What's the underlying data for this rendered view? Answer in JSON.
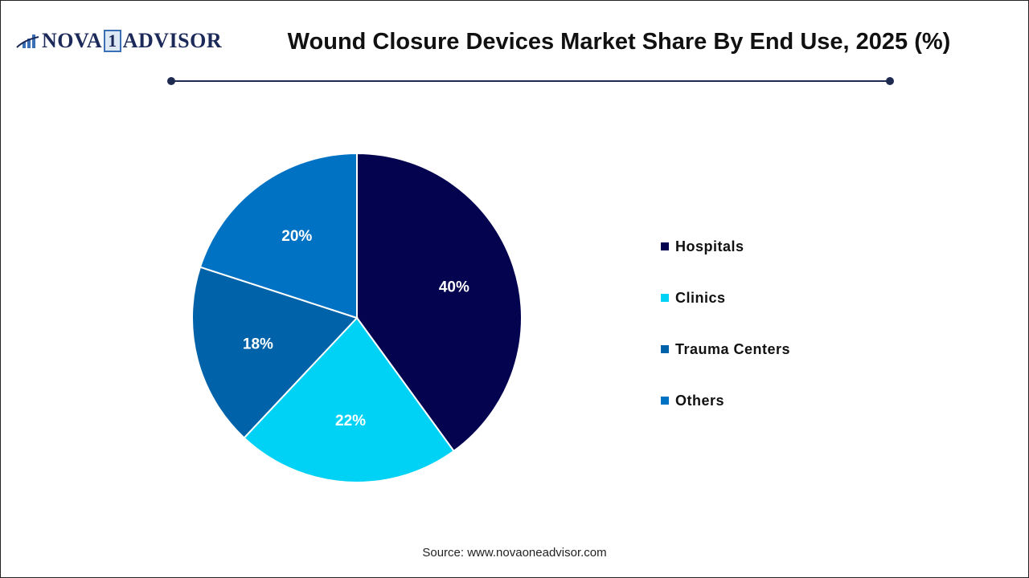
{
  "logo": {
    "text_left": "NOVA",
    "text_mark": "1",
    "text_right": "ADVISOR"
  },
  "source": "Source: www.novaoneadvisor.com",
  "chart_data": {
    "type": "pie",
    "title": "Wound Closure Devices Market Share By End Use, 2025 (%)",
    "categories": [
      "Hospitals",
      "Clinics",
      "Trauma Centers",
      "Others"
    ],
    "values": [
      40,
      22,
      18,
      20
    ],
    "labels": [
      "40%",
      "22%",
      "18%",
      "20%"
    ],
    "colors": [
      "#03034f",
      "#00d2f5",
      "#0062a8",
      "#0072c4"
    ],
    "start_angle_deg": 0,
    "direction": "clockwise",
    "legend_position": "right"
  }
}
